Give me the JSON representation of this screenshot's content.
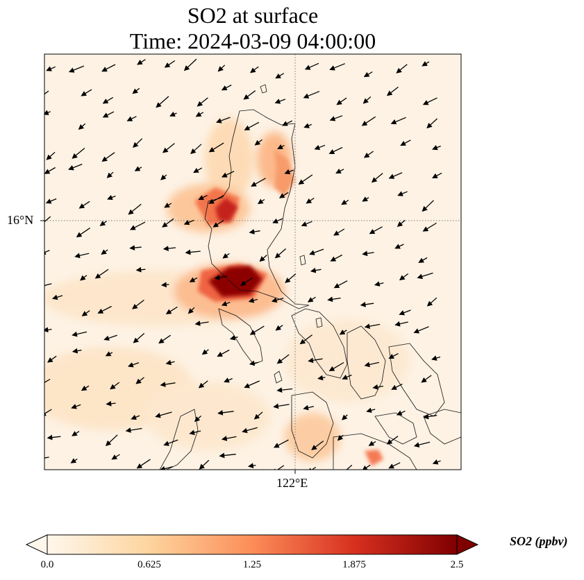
{
  "title": {
    "line1": "SO2 at surface",
    "line2": "Time: 2024-03-09 04:00:00"
  },
  "map": {
    "lat_label": "16°N",
    "lon_label": "122°E",
    "field": "SO2 concentration",
    "gridlines": "dotted",
    "overlays": [
      "coastlines",
      "wind-vectors"
    ]
  },
  "colorbar": {
    "label": "SO2 (ppbv)",
    "ticks": [
      "0.0",
      "0.625",
      "1.25",
      "1.875",
      "2.5"
    ],
    "extend": "both",
    "colormap": "OrRd",
    "colors": [
      "#fff7ec",
      "#fdd49e",
      "#fc8d59",
      "#d7301f",
      "#7f0000"
    ]
  }
}
